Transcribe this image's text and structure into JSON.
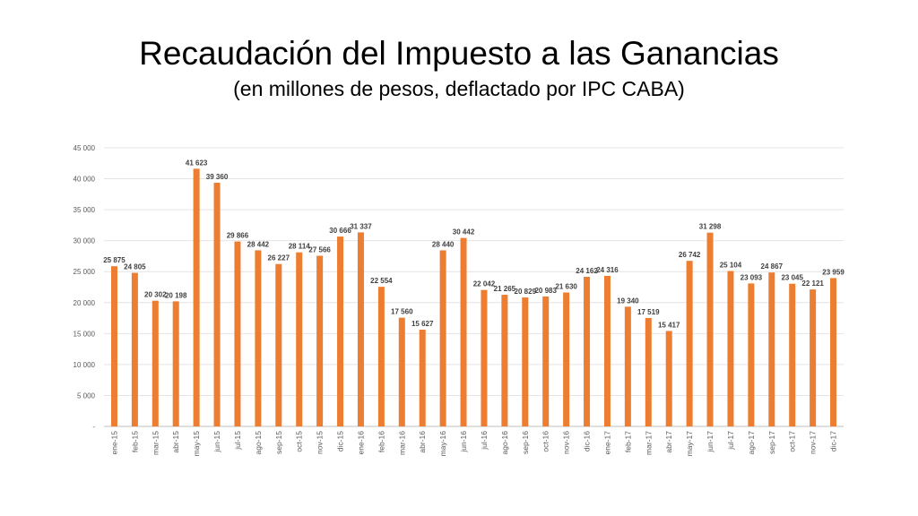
{
  "chart_data": {
    "type": "bar",
    "title": "Recaudación del Impuesto a las Ganancias",
    "subtitle": "(en millones de pesos, deflactado por IPC CABA)",
    "xlabel": "",
    "ylabel": "",
    "ylim": [
      0,
      45000
    ],
    "yticks": [
      0,
      5000,
      10000,
      15000,
      20000,
      25000,
      30000,
      35000,
      40000,
      45000
    ],
    "ytick_labels": [
      "-",
      "5 000",
      "10 000",
      "15 000",
      "20 000",
      "25 000",
      "30 000",
      "35 000",
      "40 000",
      "45 000"
    ],
    "grid": true,
    "bar_color": "#ED7D31",
    "categories": [
      "ene-15",
      "feb-15",
      "mar-15",
      "abr-15",
      "may-15",
      "jun-15",
      "jul-15",
      "ago-15",
      "sep-15",
      "oct-15",
      "nov-15",
      "dic-15",
      "ene-16",
      "feb-16",
      "mar-16",
      "abr-16",
      "may-16",
      "jun-16",
      "jul-16",
      "ago-16",
      "sep-16",
      "oct-16",
      "nov-16",
      "dic-16",
      "ene-17",
      "feb-17",
      "mar-17",
      "abr-17",
      "may-17",
      "jun-17",
      "jul-17",
      "ago-17",
      "sep-17",
      "oct-17",
      "nov-17",
      "dic-17"
    ],
    "values": [
      25875,
      24805,
      20302,
      20198,
      41623,
      39360,
      29866,
      28442,
      26227,
      28114,
      27566,
      30666,
      31337,
      22554,
      17560,
      15627,
      28440,
      30442,
      22042,
      21265,
      20829,
      20983,
      21630,
      24162,
      24316,
      19340,
      17519,
      15417,
      26742,
      31298,
      25104,
      23093,
      24867,
      23045,
      22121,
      23959
    ],
    "data_labels": [
      "25 875",
      "24 805",
      "20 302",
      "20 198",
      "41 623",
      "39 360",
      "29 866",
      "28 442",
      "26 227",
      "28 114",
      "27 566",
      "30 666",
      "31 337",
      "22 554",
      "17 560",
      "15 627",
      "28 440",
      "30 442",
      "22 042",
      "21 265",
      "20 829",
      "20 983",
      "21 630",
      "24 162",
      "24 316",
      "19 340",
      "17 519",
      "15 417",
      "26 742",
      "31 298",
      "25 104",
      "23 093",
      "24 867",
      "23 045",
      "22 121",
      "23 959"
    ]
  }
}
